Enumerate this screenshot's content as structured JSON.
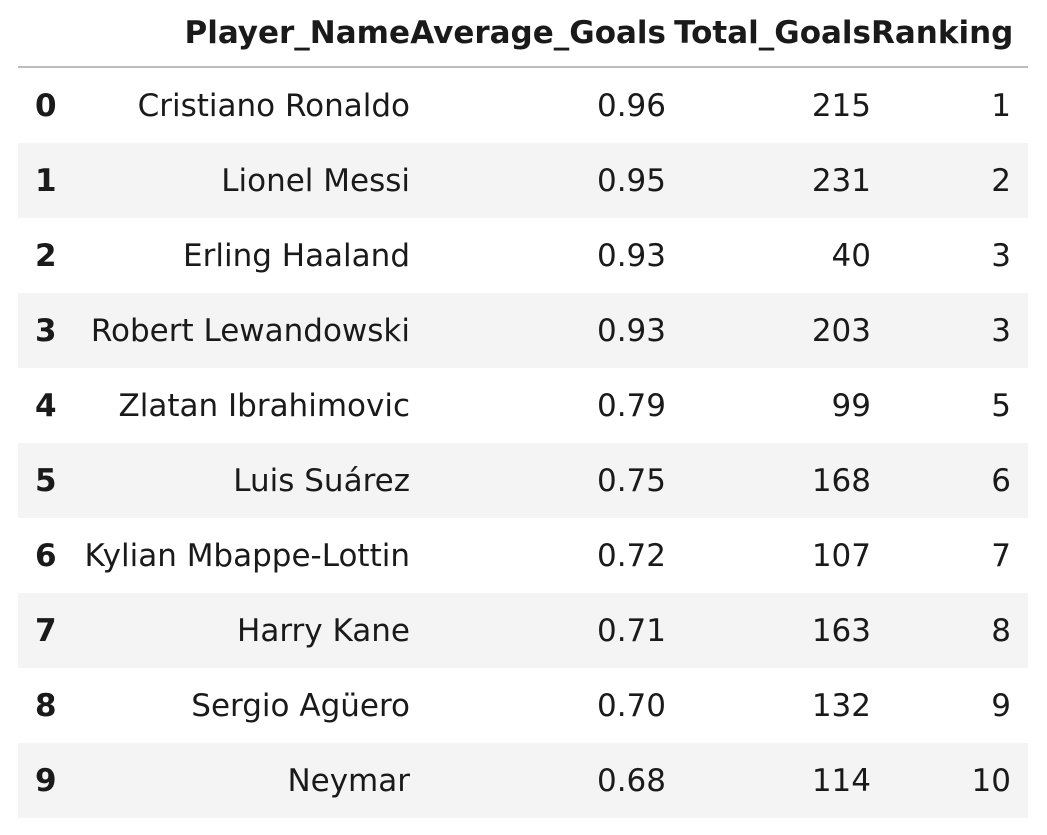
{
  "table": {
    "columns": [
      "Player_Name",
      "Average_Goals",
      "Total_Goals",
      "Ranking"
    ],
    "rows": [
      {
        "index": "0",
        "Player_Name": "Cristiano Ronaldo",
        "Average_Goals": "0.96",
        "Total_Goals": "215",
        "Ranking": "1"
      },
      {
        "index": "1",
        "Player_Name": "Lionel Messi",
        "Average_Goals": "0.95",
        "Total_Goals": "231",
        "Ranking": "2"
      },
      {
        "index": "2",
        "Player_Name": "Erling Haaland",
        "Average_Goals": "0.93",
        "Total_Goals": "40",
        "Ranking": "3"
      },
      {
        "index": "3",
        "Player_Name": "Robert Lewandowski",
        "Average_Goals": "0.93",
        "Total_Goals": "203",
        "Ranking": "3"
      },
      {
        "index": "4",
        "Player_Name": "Zlatan Ibrahimovic",
        "Average_Goals": "0.79",
        "Total_Goals": "99",
        "Ranking": "5"
      },
      {
        "index": "5",
        "Player_Name": "Luis Suárez",
        "Average_Goals": "0.75",
        "Total_Goals": "168",
        "Ranking": "6"
      },
      {
        "index": "6",
        "Player_Name": "Kylian Mbappe-Lottin",
        "Average_Goals": "0.72",
        "Total_Goals": "107",
        "Ranking": "7"
      },
      {
        "index": "7",
        "Player_Name": "Harry Kane",
        "Average_Goals": "0.71",
        "Total_Goals": "163",
        "Ranking": "8"
      },
      {
        "index": "8",
        "Player_Name": "Sergio Agüero",
        "Average_Goals": "0.70",
        "Total_Goals": "132",
        "Ranking": "9"
      },
      {
        "index": "9",
        "Player_Name": "Neymar",
        "Average_Goals": "0.68",
        "Total_Goals": "114",
        "Ranking": "10"
      }
    ]
  }
}
